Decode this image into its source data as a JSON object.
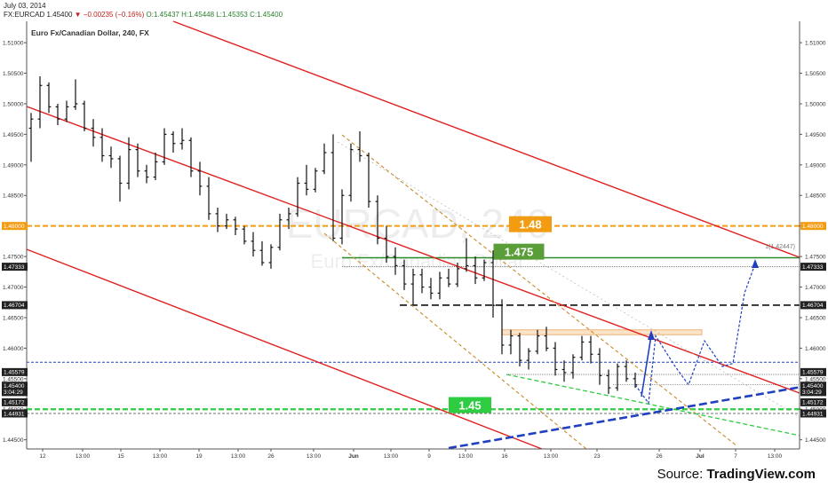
{
  "header": {
    "date": "July 03, 2014",
    "symbol": "FX:EURCAD",
    "last": "1.45400",
    "arrow": "▼",
    "change": "−0.00235 (−0.16%)",
    "o": "O:1.45437",
    "h": "H:1.45448",
    "l": "L:1.45353",
    "c": "C:1.45400"
  },
  "watermark": {
    "symbol": "EURCAD, 240",
    "name": "Euro Fx/Canadian Dollar"
  },
  "chart_title": "Euro Fx/Canadian Dollar, 240, FX",
  "source": {
    "prefix": "Source: ",
    "brand": "TradingView.com"
  },
  "chart_data": {
    "type": "ohlc",
    "ylim": [
      1.4435,
      1.5135
    ],
    "y_ticks": [
      "1.51000",
      "1.50500",
      "1.50000",
      "1.49500",
      "1.49000",
      "1.48500",
      "1.48000",
      "1.47500",
      "1.47000",
      "1.46500",
      "1.46000",
      "1.45500",
      "1.45000",
      "1.44500"
    ],
    "x_ticks": [
      "12",
      "13:00",
      "15",
      "13:00",
      "19",
      "13:00",
      "26",
      "13:00",
      "Jun",
      "13:00",
      "9",
      "13:00",
      "16",
      "13:00",
      "23",
      "26",
      "Jul",
      "7",
      "13:00",
      "14",
      "13:00"
    ],
    "price_tags": [
      {
        "label": "1.48000",
        "value": 1.48,
        "color": "#f39c12"
      },
      {
        "label": "1.47333",
        "value": 1.47333,
        "color": "#222222"
      },
      {
        "label": "1.46704",
        "value": 1.46704,
        "color": "#222222"
      },
      {
        "label": "1.45579",
        "value": 1.45579,
        "color": "#222222"
      },
      {
        "label": "1.45400",
        "value": 1.454,
        "color": "#222222"
      },
      {
        "label": "3:04:29",
        "value": 1.4531,
        "color": "#222222"
      },
      {
        "label": "1.45172",
        "value": 1.45172,
        "color": "#222222"
      },
      {
        "label": "1.44931",
        "value": 1.44931,
        "color": "#222222"
      }
    ],
    "level_labels": [
      {
        "label": "1.48",
        "value": 1.48,
        "color": "#f39c12"
      },
      {
        "label": "1.475",
        "value": 1.4755,
        "color": "#5a9e3a"
      },
      {
        "label": "1.45",
        "value": 1.4504,
        "color": "#2ecc40"
      }
    ],
    "fib_label": "1(1.42447)",
    "colors": {
      "bars": "#111111",
      "channel": "#e02020",
      "orange": "#f39c12",
      "green_level": "#2a8a2a",
      "bright_green": "#2ecc40",
      "blue": "#2040c0"
    },
    "bars": [
      {
        "o": 1.496,
        "h": 1.4985,
        "l": 1.4905,
        "c": 1.4975
      },
      {
        "o": 1.4975,
        "h": 1.5045,
        "l": 1.496,
        "c": 1.503
      },
      {
        "o": 1.503,
        "h": 1.5035,
        "l": 1.4985,
        "c": 1.4995
      },
      {
        "o": 1.4995,
        "h": 1.5,
        "l": 1.4965,
        "c": 1.4975
      },
      {
        "o": 1.4975,
        "h": 1.5005,
        "l": 1.497,
        "c": 1.4995
      },
      {
        "o": 1.4995,
        "h": 1.504,
        "l": 1.499,
        "c": 1.5
      },
      {
        "o": 1.5,
        "h": 1.5005,
        "l": 1.4955,
        "c": 1.496
      },
      {
        "o": 1.496,
        "h": 1.4975,
        "l": 1.493,
        "c": 1.4945
      },
      {
        "o": 1.4945,
        "h": 1.496,
        "l": 1.4905,
        "c": 1.4915
      },
      {
        "o": 1.4915,
        "h": 1.493,
        "l": 1.4895,
        "c": 1.491
      },
      {
        "o": 1.491,
        "h": 1.4915,
        "l": 1.484,
        "c": 1.487
      },
      {
        "o": 1.487,
        "h": 1.4945,
        "l": 1.486,
        "c": 1.4925
      },
      {
        "o": 1.4925,
        "h": 1.4935,
        "l": 1.488,
        "c": 1.489
      },
      {
        "o": 1.489,
        "h": 1.49,
        "l": 1.487,
        "c": 1.488
      },
      {
        "o": 1.488,
        "h": 1.492,
        "l": 1.4875,
        "c": 1.4905
      },
      {
        "o": 1.4905,
        "h": 1.496,
        "l": 1.49,
        "c": 1.495
      },
      {
        "o": 1.495,
        "h": 1.4955,
        "l": 1.492,
        "c": 1.4935
      },
      {
        "o": 1.4935,
        "h": 1.496,
        "l": 1.4925,
        "c": 1.494
      },
      {
        "o": 1.494,
        "h": 1.4945,
        "l": 1.488,
        "c": 1.489
      },
      {
        "o": 1.489,
        "h": 1.4905,
        "l": 1.485,
        "c": 1.4865
      },
      {
        "o": 1.4865,
        "h": 1.488,
        "l": 1.481,
        "c": 1.482
      },
      {
        "o": 1.482,
        "h": 1.483,
        "l": 1.479,
        "c": 1.48
      },
      {
        "o": 1.48,
        "h": 1.482,
        "l": 1.4795,
        "c": 1.481
      },
      {
        "o": 1.481,
        "h": 1.4815,
        "l": 1.4785,
        "c": 1.4795
      },
      {
        "o": 1.4795,
        "h": 1.48,
        "l": 1.477,
        "c": 1.4775
      },
      {
        "o": 1.4775,
        "h": 1.479,
        "l": 1.475,
        "c": 1.476
      },
      {
        "o": 1.476,
        "h": 1.4775,
        "l": 1.4735,
        "c": 1.474
      },
      {
        "o": 1.474,
        "h": 1.477,
        "l": 1.473,
        "c": 1.4765
      },
      {
        "o": 1.4765,
        "h": 1.482,
        "l": 1.476,
        "c": 1.481
      },
      {
        "o": 1.481,
        "h": 1.483,
        "l": 1.4795,
        "c": 1.482
      },
      {
        "o": 1.482,
        "h": 1.488,
        "l": 1.4815,
        "c": 1.487
      },
      {
        "o": 1.487,
        "h": 1.49,
        "l": 1.485,
        "c": 1.486
      },
      {
        "o": 1.486,
        "h": 1.4895,
        "l": 1.4855,
        "c": 1.489
      },
      {
        "o": 1.489,
        "h": 1.4935,
        "l": 1.4885,
        "c": 1.492
      },
      {
        "o": 1.492,
        "h": 1.495,
        "l": 1.4775,
        "c": 1.478
      },
      {
        "o": 1.478,
        "h": 1.486,
        "l": 1.477,
        "c": 1.485
      },
      {
        "o": 1.485,
        "h": 1.4935,
        "l": 1.484,
        "c": 1.4925
      },
      {
        "o": 1.4925,
        "h": 1.4955,
        "l": 1.4905,
        "c": 1.4915
      },
      {
        "o": 1.4915,
        "h": 1.492,
        "l": 1.483,
        "c": 1.484
      },
      {
        "o": 1.484,
        "h": 1.485,
        "l": 1.477,
        "c": 1.478
      },
      {
        "o": 1.478,
        "h": 1.48,
        "l": 1.474,
        "c": 1.475
      },
      {
        "o": 1.475,
        "h": 1.4765,
        "l": 1.472,
        "c": 1.4735
      },
      {
        "o": 1.4735,
        "h": 1.4745,
        "l": 1.4695,
        "c": 1.4705
      },
      {
        "o": 1.4705,
        "h": 1.473,
        "l": 1.467,
        "c": 1.472
      },
      {
        "o": 1.472,
        "h": 1.473,
        "l": 1.469,
        "c": 1.47
      },
      {
        "o": 1.47,
        "h": 1.4715,
        "l": 1.468,
        "c": 1.469
      },
      {
        "o": 1.469,
        "h": 1.4725,
        "l": 1.468,
        "c": 1.4715
      },
      {
        "o": 1.4715,
        "h": 1.473,
        "l": 1.47,
        "c": 1.4705
      },
      {
        "o": 1.4705,
        "h": 1.474,
        "l": 1.47,
        "c": 1.473
      },
      {
        "o": 1.473,
        "h": 1.478,
        "l": 1.4725,
        "c": 1.4735
      },
      {
        "o": 1.4735,
        "h": 1.475,
        "l": 1.4705,
        "c": 1.4715
      },
      {
        "o": 1.4715,
        "h": 1.4745,
        "l": 1.471,
        "c": 1.474
      },
      {
        "o": 1.474,
        "h": 1.476,
        "l": 1.465,
        "c": 1.467
      },
      {
        "o": 1.467,
        "h": 1.468,
        "l": 1.459,
        "c": 1.4605
      },
      {
        "o": 1.4605,
        "h": 1.463,
        "l": 1.459,
        "c": 1.462
      },
      {
        "o": 1.462,
        "h": 1.4625,
        "l": 1.457,
        "c": 1.458
      },
      {
        "o": 1.458,
        "h": 1.46,
        "l": 1.4565,
        "c": 1.4595
      },
      {
        "o": 1.4595,
        "h": 1.463,
        "l": 1.459,
        "c": 1.462
      },
      {
        "o": 1.462,
        "h": 1.4635,
        "l": 1.4595,
        "c": 1.46
      },
      {
        "o": 1.46,
        "h": 1.461,
        "l": 1.4555,
        "c": 1.4565
      },
      {
        "o": 1.4565,
        "h": 1.458,
        "l": 1.4545,
        "c": 1.456
      },
      {
        "o": 1.456,
        "h": 1.459,
        "l": 1.455,
        "c": 1.4585
      },
      {
        "o": 1.4585,
        "h": 1.462,
        "l": 1.458,
        "c": 1.461
      },
      {
        "o": 1.461,
        "h": 1.462,
        "l": 1.4575,
        "c": 1.459
      },
      {
        "o": 1.459,
        "h": 1.46,
        "l": 1.454,
        "c": 1.4555
      },
      {
        "o": 1.4555,
        "h": 1.4565,
        "l": 1.4525,
        "c": 1.4535
      },
      {
        "o": 1.4535,
        "h": 1.4575,
        "l": 1.453,
        "c": 1.457
      },
      {
        "o": 1.457,
        "h": 1.458,
        "l": 1.4545,
        "c": 1.455
      },
      {
        "o": 1.455,
        "h": 1.456,
        "l": 1.4535,
        "c": 1.454
      }
    ]
  }
}
